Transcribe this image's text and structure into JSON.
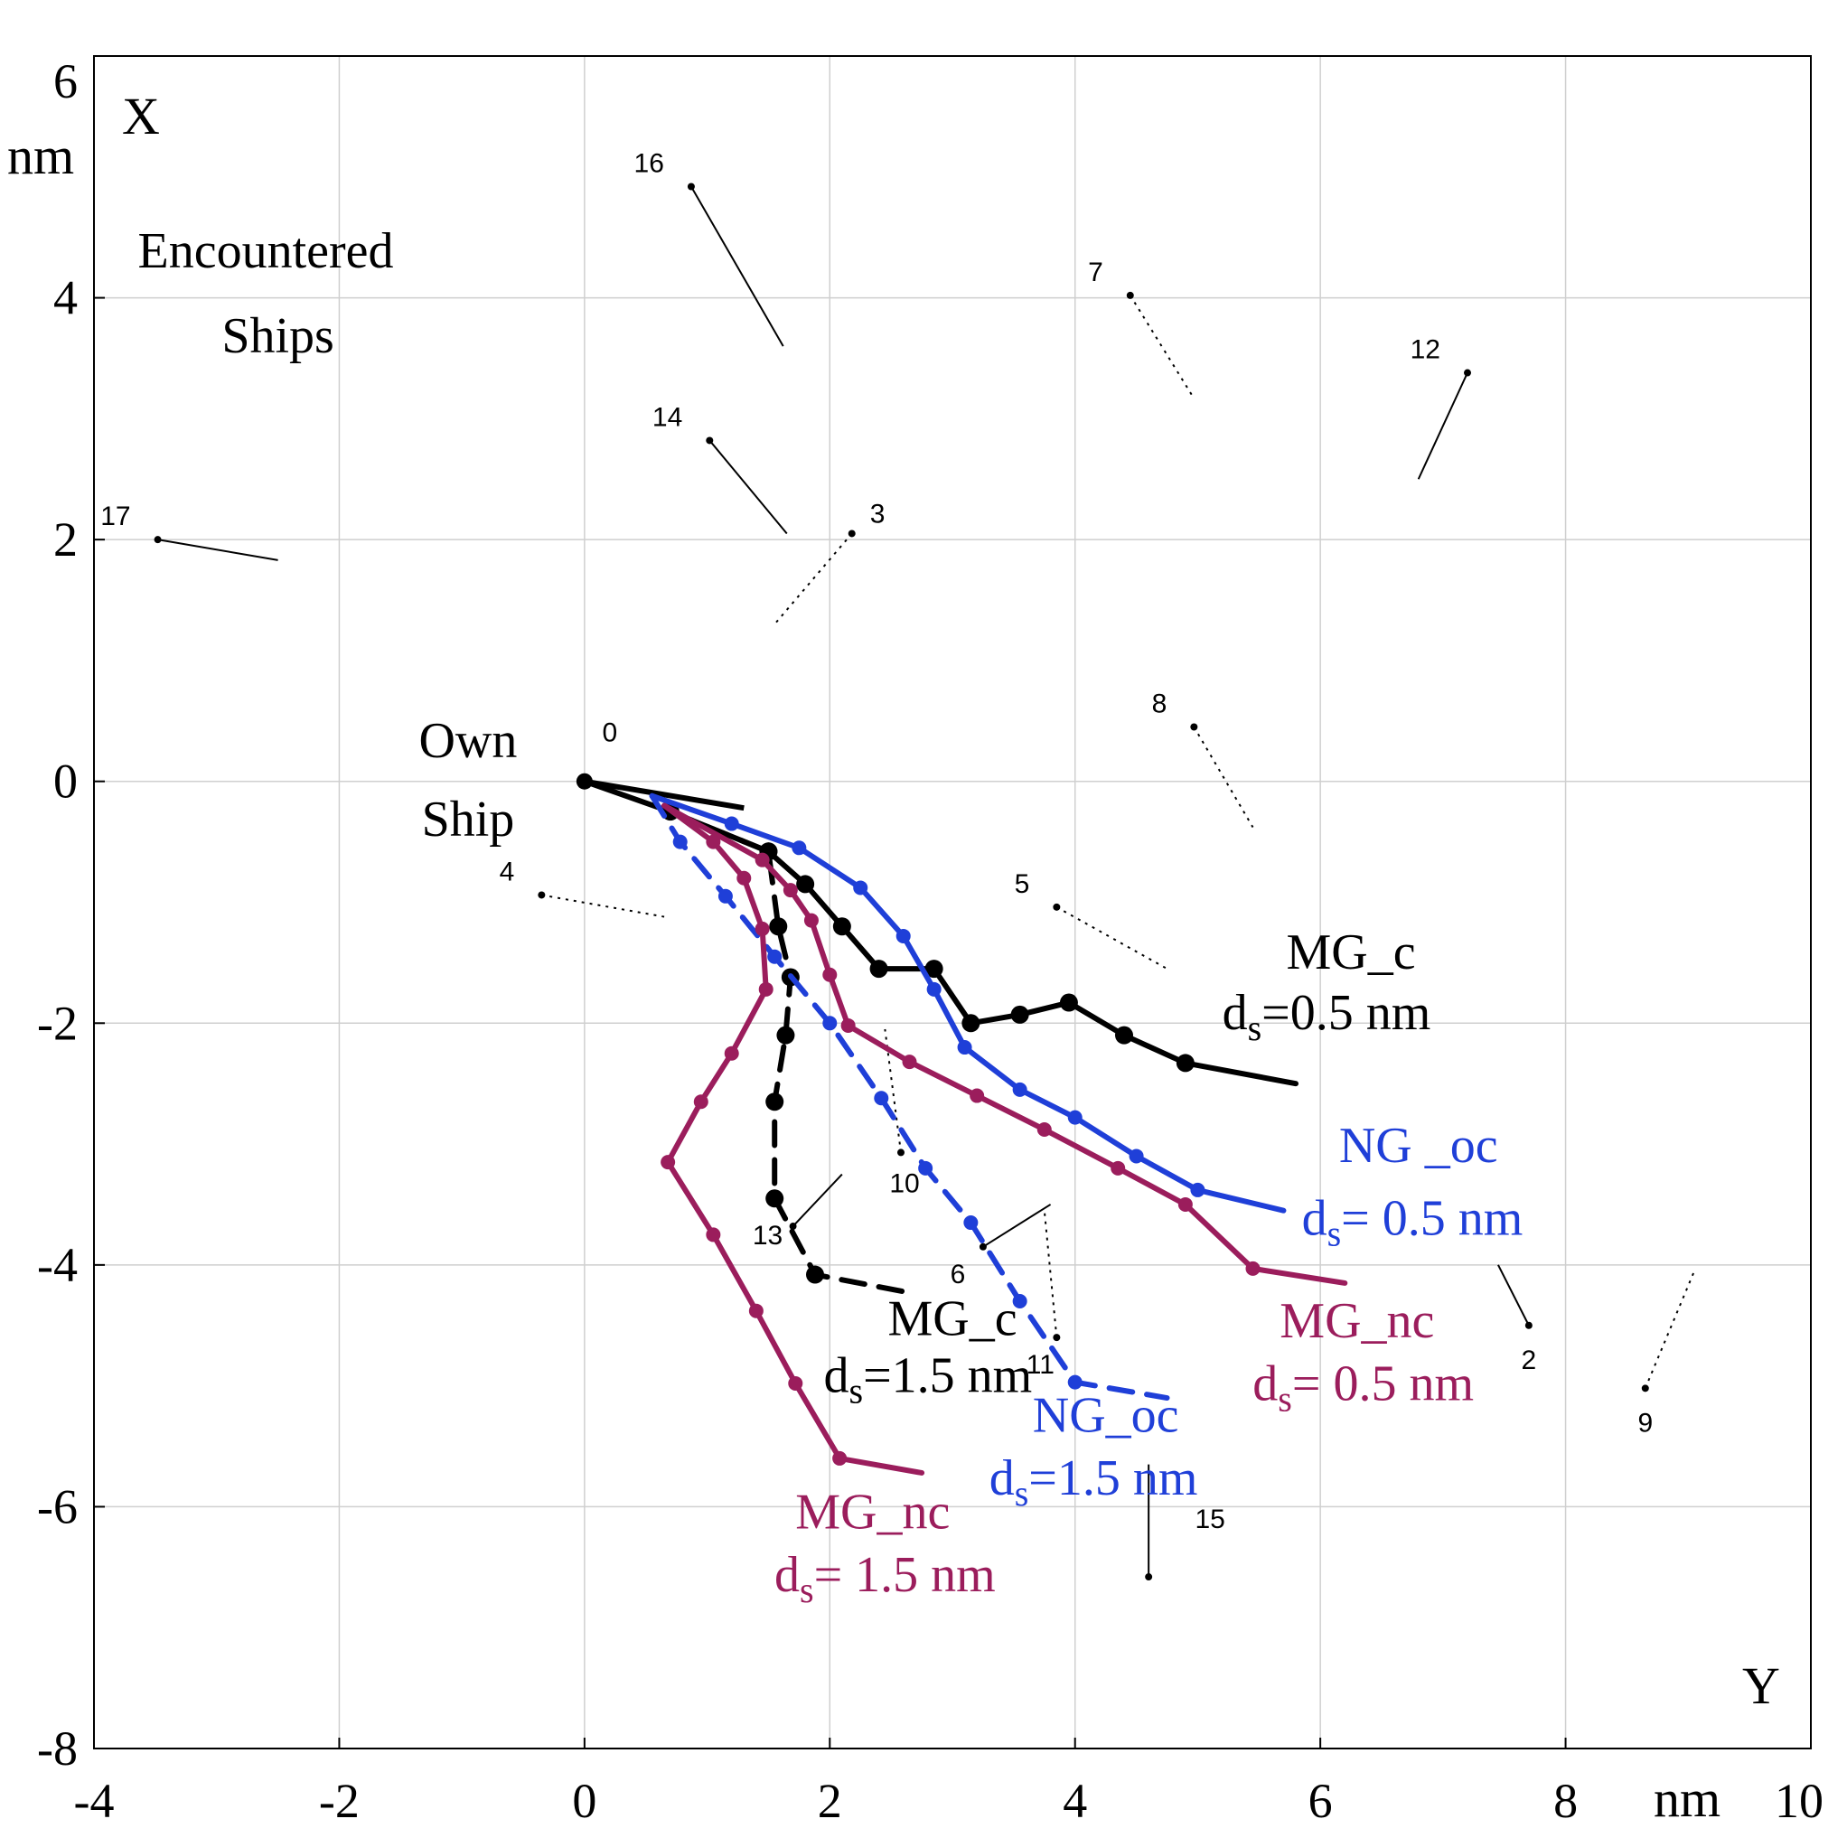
{
  "chart_data": {
    "type": "line",
    "x_axis": {
      "label": "Y",
      "unit": "nm",
      "range": [
        -4,
        10
      ],
      "ticks": [
        "-4",
        "-2",
        "0",
        "2",
        "4",
        "6",
        "8",
        "10"
      ]
    },
    "y_axis": {
      "label": "X",
      "unit": "nm",
      "range": [
        -8,
        6
      ],
      "ticks": [
        "6",
        "4",
        "2",
        "0",
        "-2",
        "-4",
        "-6",
        "-8"
      ]
    },
    "grid": true,
    "annotations": {
      "encountered_line1": "Encountered",
      "encountered_line2": "Ships",
      "own_line1": "Own",
      "own_line2": "Ship"
    },
    "colors": {
      "mg_c": "#000000",
      "ng_oc": "#1f3fd8",
      "mg_nc": "#9b1d5c"
    },
    "series": [
      {
        "name": "MG_c 0.5",
        "label_name": "MG_c",
        "ds_prefix": "d",
        "ds_sub": "s",
        "ds_value": "=0.5 nm",
        "color": "#000000",
        "dashed": false,
        "points": [
          [
            0,
            0
          ],
          [
            0.7,
            -0.25
          ],
          [
            1.5,
            -0.58
          ],
          [
            1.8,
            -0.85
          ],
          [
            2.1,
            -1.2
          ],
          [
            2.4,
            -1.55
          ],
          [
            2.85,
            -1.55
          ],
          [
            3.15,
            -2.0
          ],
          [
            3.55,
            -1.93
          ],
          [
            3.95,
            -1.83
          ],
          [
            4.4,
            -2.1
          ],
          [
            4.9,
            -2.33
          ],
          [
            5.8,
            -2.5
          ]
        ]
      },
      {
        "name": "MG_c 1.5",
        "label_name": "MG_c",
        "ds_prefix": "d",
        "ds_sub": "s",
        "ds_value": "=1.5 nm",
        "color": "#000000",
        "dashed": true,
        "points": [
          [
            0.7,
            -0.25
          ],
          [
            1.5,
            -0.58
          ],
          [
            1.58,
            -1.2
          ],
          [
            1.68,
            -1.62
          ],
          [
            1.64,
            -2.1
          ],
          [
            1.55,
            -2.65
          ],
          [
            1.55,
            -3.45
          ],
          [
            1.88,
            -4.08
          ],
          [
            2.6,
            -4.22
          ]
        ]
      },
      {
        "name": "NG_oc 0.5",
        "label_name": "NG _oc",
        "ds_prefix": "d",
        "ds_sub": "s",
        "ds_value": "= 0.5 nm",
        "color": "#1f3fd8",
        "dashed": false,
        "points": [
          [
            0.55,
            -0.12
          ],
          [
            1.2,
            -0.35
          ],
          [
            1.75,
            -0.55
          ],
          [
            2.25,
            -0.88
          ],
          [
            2.6,
            -1.28
          ],
          [
            2.85,
            -1.72
          ],
          [
            3.1,
            -2.2
          ],
          [
            3.55,
            -2.55
          ],
          [
            4.0,
            -2.78
          ],
          [
            4.5,
            -3.1
          ],
          [
            5.0,
            -3.38
          ],
          [
            5.7,
            -3.55
          ]
        ]
      },
      {
        "name": "NG_oc 1.5",
        "label_name": "NG_oc",
        "ds_prefix": "d",
        "ds_sub": "s",
        "ds_value": "=1.5 nm",
        "color": "#1f3fd8",
        "dashed": true,
        "points": [
          [
            0.55,
            -0.12
          ],
          [
            0.78,
            -0.5
          ],
          [
            1.15,
            -0.95
          ],
          [
            1.55,
            -1.45
          ],
          [
            2.0,
            -2.0
          ],
          [
            2.42,
            -2.62
          ],
          [
            2.78,
            -3.2
          ],
          [
            3.15,
            -3.65
          ],
          [
            3.55,
            -4.3
          ],
          [
            4.0,
            -4.97
          ],
          [
            4.75,
            -5.1
          ]
        ]
      },
      {
        "name": "MG_nc 0.5",
        "label_name": "MG_nc",
        "ds_prefix": "d",
        "ds_sub": "s",
        "ds_value": "= 0.5 nm",
        "color": "#9b1d5c",
        "dashed": false,
        "points": [
          [
            0.65,
            -0.2
          ],
          [
            1.45,
            -0.65
          ],
          [
            1.68,
            -0.9
          ],
          [
            1.85,
            -1.15
          ],
          [
            2.0,
            -1.6
          ],
          [
            2.15,
            -2.02
          ],
          [
            2.65,
            -2.32
          ],
          [
            3.2,
            -2.6
          ],
          [
            3.75,
            -2.88
          ],
          [
            4.35,
            -3.2
          ],
          [
            4.9,
            -3.5
          ],
          [
            5.45,
            -4.03
          ],
          [
            6.2,
            -4.15
          ]
        ]
      },
      {
        "name": "MG_nc 1.5",
        "label_name": "MG_nc",
        "ds_prefix": "d",
        "ds_sub": "s",
        "ds_value": "= 1.5 nm",
        "color": "#9b1d5c",
        "dashed": false,
        "points": [
          [
            0.65,
            -0.2
          ],
          [
            1.05,
            -0.5
          ],
          [
            1.3,
            -0.8
          ],
          [
            1.45,
            -1.22
          ],
          [
            1.48,
            -1.72
          ],
          [
            1.2,
            -2.25
          ],
          [
            0.95,
            -2.65
          ],
          [
            0.68,
            -3.15
          ],
          [
            1.05,
            -3.75
          ],
          [
            1.4,
            -4.38
          ],
          [
            1.72,
            -4.98
          ],
          [
            2.08,
            -5.6
          ],
          [
            2.75,
            -5.72
          ]
        ]
      }
    ],
    "series_labels": [
      {
        "series": 0,
        "at": [
          6.25,
          -1.55
        ],
        "line2_at": [
          6.05,
          -2.05
        ],
        "anchor": "middle"
      },
      {
        "series": 1,
        "at": [
          3.0,
          -4.58
        ],
        "line2_at": [
          2.8,
          -5.05
        ],
        "anchor": "middle"
      },
      {
        "series": 2,
        "at": [
          6.8,
          -3.15
        ],
        "line2_at": [
          6.75,
          -3.75
        ],
        "anchor": "middle"
      },
      {
        "series": 3,
        "at": [
          4.25,
          -5.38
        ],
        "line2_at": [
          4.15,
          -5.9
        ],
        "anchor": "middle"
      },
      {
        "series": 4,
        "at": [
          6.3,
          -4.6
        ],
        "line2_at": [
          6.35,
          -5.12
        ],
        "anchor": "middle"
      },
      {
        "series": 5,
        "at": [
          2.35,
          -6.18
        ],
        "line2_at": [
          2.45,
          -6.7
        ],
        "anchor": "middle"
      }
    ],
    "ships": [
      {
        "id": "0",
        "pos": [
          0,
          0
        ],
        "end": [
          1.3,
          -0.22
        ],
        "style": "solid",
        "own": true
      },
      {
        "id": "16",
        "pos": [
          0.87,
          4.92
        ],
        "end": [
          1.62,
          3.6
        ],
        "style": "solid"
      },
      {
        "id": "7",
        "pos": [
          4.45,
          4.02
        ],
        "end": [
          4.95,
          3.2
        ],
        "style": "dashed"
      },
      {
        "id": "12",
        "pos": [
          7.2,
          3.38
        ],
        "end": [
          6.8,
          2.5
        ],
        "style": "solid"
      },
      {
        "id": "14",
        "pos": [
          1.02,
          2.82
        ],
        "end": [
          1.65,
          2.05
        ],
        "style": "solid"
      },
      {
        "id": "3",
        "pos": [
          2.18,
          2.05
        ],
        "end": [
          1.55,
          1.3
        ],
        "style": "dashed"
      },
      {
        "id": "17",
        "pos": [
          -3.48,
          2.0
        ],
        "end": [
          -2.5,
          1.83
        ],
        "style": "solid"
      },
      {
        "id": "8",
        "pos": [
          4.97,
          0.45
        ],
        "end": [
          5.45,
          -0.38
        ],
        "style": "dashed"
      },
      {
        "id": "4",
        "pos": [
          -0.35,
          -0.94
        ],
        "end": [
          0.65,
          -1.12
        ],
        "style": "dashed"
      },
      {
        "id": "5",
        "pos": [
          3.85,
          -1.04
        ],
        "end": [
          4.75,
          -1.55
        ],
        "style": "dashed"
      },
      {
        "id": "10",
        "pos": [
          2.58,
          -3.07
        ],
        "end": [
          2.45,
          -2.05
        ],
        "style": "dashed"
      },
      {
        "id": "13",
        "pos": [
          1.7,
          -3.68
        ],
        "end": [
          2.1,
          -3.25
        ],
        "style": "solid"
      },
      {
        "id": "6",
        "pos": [
          3.25,
          -3.85
        ],
        "end": [
          3.8,
          -3.5
        ],
        "style": "solid"
      },
      {
        "id": "11",
        "pos": [
          3.85,
          -4.6
        ],
        "end": [
          3.75,
          -3.55
        ],
        "style": "dashed"
      },
      {
        "id": "2",
        "pos": [
          7.7,
          -4.5
        ],
        "end": [
          7.45,
          -4.0
        ],
        "style": "solid"
      },
      {
        "id": "9",
        "pos": [
          8.65,
          -5.02
        ],
        "end": [
          9.05,
          -4.05
        ],
        "style": "dashed"
      },
      {
        "id": "15",
        "pos": [
          4.6,
          -6.58
        ],
        "end": [
          4.6,
          -5.65
        ],
        "style": "solid"
      }
    ]
  }
}
